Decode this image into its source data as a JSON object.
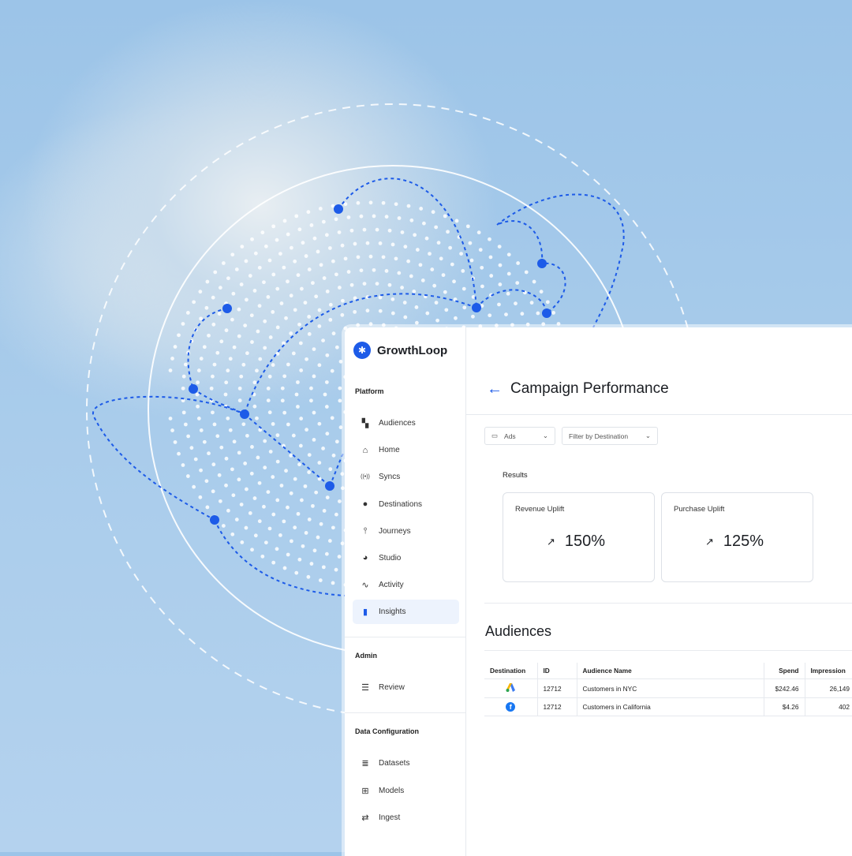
{
  "brand": {
    "name": "GrowthLoop"
  },
  "sidebar": {
    "platform_label": "Platform",
    "platform": [
      {
        "label": "Audiences",
        "icon": "dashboard-icon"
      },
      {
        "label": "Home",
        "icon": "home-icon"
      },
      {
        "label": "Syncs",
        "icon": "broadcast-icon"
      },
      {
        "label": "Destinations",
        "icon": "compass-icon"
      },
      {
        "label": "Journeys",
        "icon": "route-icon"
      },
      {
        "label": "Studio",
        "icon": "palette-icon"
      },
      {
        "label": "Activity",
        "icon": "activity-search-icon"
      },
      {
        "label": "Insights",
        "icon": "bar-chart-icon",
        "active": true
      }
    ],
    "admin_label": "Admin",
    "admin": [
      {
        "label": "Review",
        "icon": "list-check-icon"
      }
    ],
    "data_label": "Data Configuration",
    "data": [
      {
        "label": "Datasets",
        "icon": "database-icon"
      },
      {
        "label": "Models",
        "icon": "model-tree-icon"
      },
      {
        "label": "Ingest",
        "icon": "swap-icon"
      }
    ]
  },
  "header": {
    "title": "Campaign Performance"
  },
  "filters": {
    "channel": "Ads",
    "destination": "Filter by Destination"
  },
  "results": {
    "label": "Results",
    "cards": [
      {
        "label": "Revenue Uplift",
        "value": "150%"
      },
      {
        "label": "Purchase Uplift",
        "value": "125%"
      }
    ]
  },
  "audiences": {
    "title": "Audiences",
    "columns": [
      "Destination",
      "ID",
      "Audience Name",
      "Spend",
      "Impression"
    ],
    "rows": [
      {
        "destination": "google-ads-icon",
        "id": "12712",
        "name": "Customers in NYC",
        "spend": "$242.46",
        "impressions": "26,149"
      },
      {
        "destination": "facebook-icon",
        "id": "12712",
        "name": "Customers in California",
        "spend": "$4.26",
        "impressions": "402"
      }
    ]
  },
  "colors": {
    "accent": "#1d5be8",
    "sky": "#a9cceb"
  }
}
